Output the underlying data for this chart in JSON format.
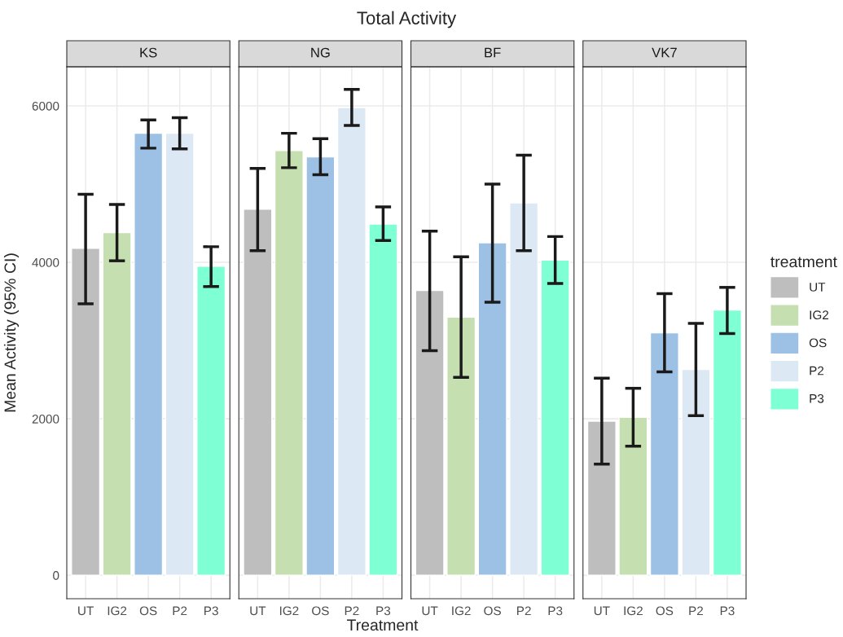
{
  "chart_data": [
    {
      "type": "bar",
      "title": "KS",
      "ylabel": "Mean Activity (95% CI)",
      "annotations": [
        "Total Activity"
      ],
      "categories": [
        "UT",
        "IG2",
        "OS",
        "P2",
        "P3"
      ],
      "values": [
        4180,
        4380,
        5650,
        5650,
        3950
      ],
      "errors": [
        [
          3470,
          4870
        ],
        [
          4020,
          4740
        ],
        [
          5460,
          5820
        ],
        [
          5450,
          5850
        ],
        [
          3690,
          4200
        ]
      ],
      "colors": [
        "#bebebe",
        "#c6dfb0",
        "#9dc0e5",
        "#dce9f5",
        "#7fffd4"
      ],
      "ylim": [
        -300,
        6500
      ],
      "yticks": [
        0,
        2000,
        4000,
        6000
      ],
      "grid": true
    },
    {
      "type": "bar",
      "title": "NG",
      "xlabel": "Treatment",
      "categories": [
        "UT",
        "IG2",
        "OS",
        "P2",
        "P3"
      ],
      "values": [
        4680,
        5430,
        5350,
        5980,
        4490
      ],
      "errors": [
        [
          4150,
          5200
        ],
        [
          5210,
          5650
        ],
        [
          5120,
          5580
        ],
        [
          5750,
          6210
        ],
        [
          4280,
          4710
        ]
      ],
      "colors": [
        "#bebebe",
        "#c6dfb0",
        "#9dc0e5",
        "#dce9f5",
        "#7fffd4"
      ],
      "ylim": [
        -300,
        6500
      ],
      "yticks": [
        0,
        2000,
        4000,
        6000
      ],
      "grid": true,
      "tick_labels": "x"
    },
    {
      "type": "bar",
      "title": "BF",
      "categories": [
        "UT",
        "IG2",
        "OS",
        "P2",
        "P3"
      ],
      "values": [
        3640,
        3300,
        4250,
        4760,
        4030
      ],
      "errors": [
        [
          2870,
          4400
        ],
        [
          2530,
          4070
        ],
        [
          3490,
          5000
        ],
        [
          4150,
          5370
        ],
        [
          3730,
          4330
        ]
      ],
      "colors": [
        "#bebebe",
        "#c6dfb0",
        "#9dc0e5",
        "#dce9f5",
        "#7fffd4"
      ],
      "ylim": [
        -300,
        6500
      ],
      "yticks": [
        0,
        2000,
        4000,
        6000
      ],
      "grid": true,
      "tick_labels": "x"
    },
    {
      "type": "bar",
      "title": "VK7",
      "categories": [
        "UT",
        "IG2",
        "OS",
        "P2",
        "P3"
      ],
      "values": [
        1970,
        2020,
        3100,
        2630,
        3390
      ],
      "errors": [
        [
          1420,
          2520
        ],
        [
          1650,
          2390
        ],
        [
          2600,
          3600
        ],
        [
          2040,
          3220
        ],
        [
          3090,
          3680
        ]
      ],
      "colors": [
        "#bebebe",
        "#c6dfb0",
        "#9dc0e5",
        "#dce9f5",
        "#7fffd4"
      ],
      "ylim": [
        -300,
        6500
      ],
      "yticks": [
        0,
        2000,
        4000,
        6000
      ],
      "grid": true,
      "tick_labels": "x",
      "legend_title": "treatment"
    }
  ]
}
